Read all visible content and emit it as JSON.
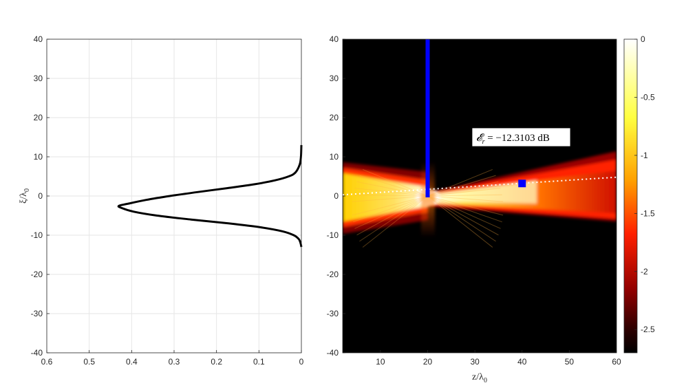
{
  "chart_data": [
    {
      "type": "line",
      "panel": "left",
      "xlim": [
        0.6,
        0
      ],
      "x_reversed": true,
      "ylim": [
        -40,
        40
      ],
      "xticks": [
        "0.6",
        "0.5",
        "0.4",
        "0.3",
        "0.2",
        "0.1",
        "0"
      ],
      "yticks": [
        "40",
        "30",
        "20",
        "10",
        "0",
        "-10",
        "-20",
        "-30",
        "-40"
      ],
      "ylabel": "ξ/λ0",
      "ylabel_main": "ξ/λ",
      "ylabel_sub": "0",
      "grid": true,
      "series": [
        {
          "color": "#000000",
          "y": [
            13,
            10,
            8,
            6,
            5,
            4,
            3,
            2,
            1,
            0,
            -1,
            -2,
            -2.5,
            -3,
            -4,
            -5,
            -6,
            -7,
            -8,
            -9,
            -10,
            -11,
            -12,
            -13
          ],
          "x": [
            0,
            0.001,
            0.004,
            0.014,
            0.03,
            0.062,
            0.11,
            0.175,
            0.245,
            0.31,
            0.366,
            0.41,
            0.43,
            0.425,
            0.395,
            0.34,
            0.26,
            0.17,
            0.095,
            0.045,
            0.018,
            0.006,
            0.002,
            0
          ]
        }
      ]
    },
    {
      "type": "heatmap",
      "panel": "right",
      "xlim": [
        2,
        60
      ],
      "ylim": [
        -40,
        40
      ],
      "xticks": [
        "10",
        "20",
        "30",
        "40",
        "50",
        "60"
      ],
      "yticks": [
        "40",
        "30",
        "20",
        "10",
        "0",
        "-10",
        "-20",
        "-30",
        "-40"
      ],
      "xlabel": "z/λ0",
      "xlabel_main": "z/λ",
      "xlabel_sub": "0",
      "colormap": "hot",
      "colorbar": {
        "range": [
          -2.7,
          0
        ],
        "ticks": [
          "0",
          "-0.5",
          "-1",
          "-1.5",
          "-2",
          "-2.5"
        ]
      },
      "annotation": "𝓔r = −12.3103 dB",
      "annotation_prefix": "𝓔",
      "annotation_sub": "r",
      "annotation_rest": " = −12.3103 dB",
      "aperture_line": {
        "z": 20,
        "xi_range": [
          0,
          40
        ],
        "color": "#0000ff"
      },
      "target_marker": {
        "z": 40,
        "xi": 3.2,
        "color": "#0000ff"
      },
      "dotted_path": {
        "from": [
          2,
          0.3
        ],
        "via": [
          20,
          1.7
        ],
        "to": [
          60,
          4.8
        ],
        "color": "#ffffff"
      }
    }
  ]
}
